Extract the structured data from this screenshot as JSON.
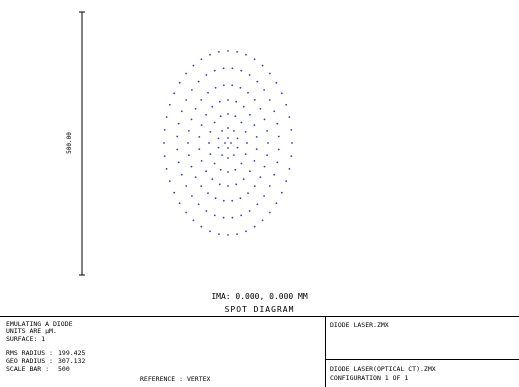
{
  "chart_data": {
    "type": "scatter",
    "title": "SPOT DIAGRAM",
    "field_label": "IMA: 0.000, 0.000 MM",
    "scale_bar_label": "500.00",
    "colors": {
      "points": "#3333ee",
      "axis": "#000000"
    },
    "rings": [
      {
        "semi_x": 64,
        "semi_y": 92,
        "points": 44
      },
      {
        "semi_x": 51,
        "semi_y": 75,
        "points": 36
      },
      {
        "semi_x": 40,
        "semi_y": 58,
        "points": 30
      },
      {
        "semi_x": 29,
        "semi_y": 43,
        "points": 22
      },
      {
        "semi_x": 19,
        "semi_y": 29,
        "points": 16
      },
      {
        "semi_x": 10,
        "semi_y": 15,
        "points": 10
      },
      {
        "semi_x": 3,
        "semi_y": 5,
        "points": 4
      }
    ],
    "x_range": [
      -250,
      250
    ],
    "y_range": [
      -250,
      250
    ]
  },
  "info_box": {
    "line1": "EMULATING A DIODE",
    "line2": "SURFACE: 1",
    "line3": "UNITS ARE µM.",
    "rms_label": "RMS RADIUS :",
    "rms_value": "199.425",
    "geo_label": "GEO RADIUS :",
    "geo_value": "307.132",
    "scale_label": "SCALE BAR  :",
    "scale_value": "500",
    "reference": "REFERENCE : VERTEX",
    "file_name": "DIODE LASER.ZMX",
    "config": "CONFIGURATION 1 OF 1",
    "config_label": "DIODE LASER(OPTICAL CT).ZMX"
  }
}
